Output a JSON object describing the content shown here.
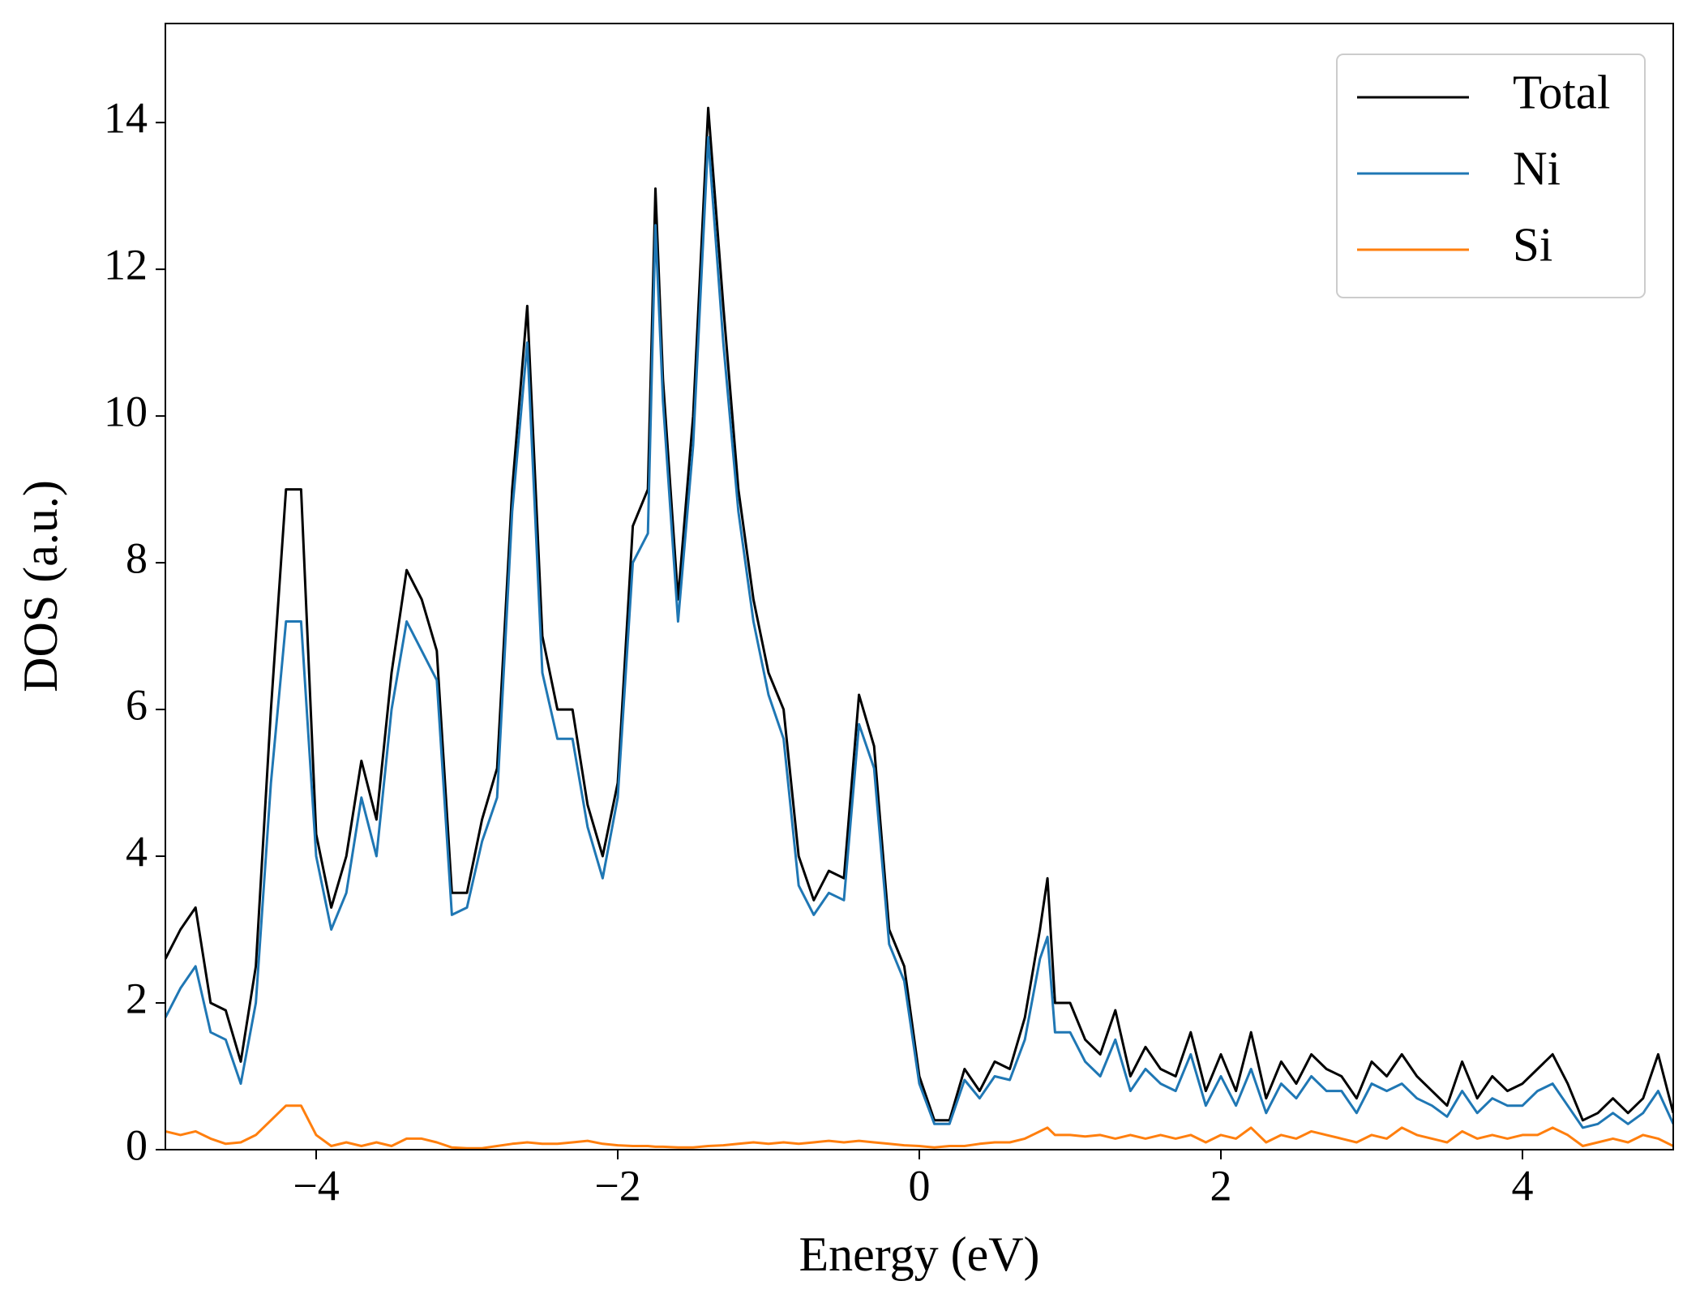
{
  "chart_data": {
    "type": "line",
    "xlabel": "Energy (eV)",
    "ylabel": "DOS (a.u.)",
    "xlim": [
      -5,
      5
    ],
    "ylim": [
      0,
      15.35
    ],
    "xticks": [
      {
        "value": -4,
        "label": "−4"
      },
      {
        "value": -2,
        "label": "−2"
      },
      0,
      2,
      4
    ],
    "yticks": [
      0,
      2,
      4,
      6,
      8,
      10,
      12,
      14
    ],
    "legend": "upper right",
    "x": [
      -5.0,
      -4.9,
      -4.8,
      -4.7,
      -4.6,
      -4.5,
      -4.4,
      -4.3,
      -4.2,
      -4.1,
      -4.0,
      -3.9,
      -3.8,
      -3.7,
      -3.6,
      -3.5,
      -3.4,
      -3.3,
      -3.2,
      -3.1,
      -3.0,
      -2.9,
      -2.8,
      -2.7,
      -2.6,
      -2.5,
      -2.4,
      -2.3,
      -2.2,
      -2.1,
      -2.0,
      -1.9,
      -1.8,
      -1.75,
      -1.7,
      -1.6,
      -1.5,
      -1.4,
      -1.3,
      -1.2,
      -1.1,
      -1.0,
      -0.9,
      -0.8,
      -0.7,
      -0.6,
      -0.5,
      -0.4,
      -0.3,
      -0.2,
      -0.1,
      0.0,
      0.1,
      0.2,
      0.3,
      0.4,
      0.5,
      0.6,
      0.7,
      0.8,
      0.85,
      0.9,
      1.0,
      1.1,
      1.2,
      1.3,
      1.4,
      1.5,
      1.6,
      1.7,
      1.8,
      1.9,
      2.0,
      2.1,
      2.2,
      2.3,
      2.4,
      2.5,
      2.6,
      2.7,
      2.8,
      2.9,
      3.0,
      3.1,
      3.2,
      3.3,
      3.4,
      3.5,
      3.6,
      3.7,
      3.8,
      3.9,
      4.0,
      4.1,
      4.2,
      4.3,
      4.4,
      4.5,
      4.6,
      4.7,
      4.8,
      4.9,
      5.0
    ],
    "series": [
      {
        "name": "Total",
        "color": "#000000",
        "values": [
          2.6,
          3.0,
          3.3,
          2.0,
          1.9,
          1.2,
          2.5,
          6.0,
          9.0,
          9.0,
          4.3,
          3.3,
          4.0,
          5.3,
          4.5,
          6.5,
          7.9,
          7.5,
          6.8,
          3.5,
          3.5,
          4.5,
          5.2,
          9.0,
          11.5,
          7.0,
          6.0,
          6.0,
          4.7,
          4.0,
          5.0,
          8.5,
          9.0,
          13.1,
          10.5,
          7.5,
          10.0,
          14.2,
          11.5,
          9.0,
          7.5,
          6.5,
          6.0,
          4.0,
          3.4,
          3.8,
          3.7,
          6.2,
          5.5,
          3.0,
          2.5,
          1.0,
          0.4,
          0.4,
          1.1,
          0.8,
          1.2,
          1.1,
          1.8,
          3.0,
          3.7,
          2.0,
          2.0,
          1.5,
          1.3,
          1.9,
          1.0,
          1.4,
          1.1,
          1.0,
          1.6,
          0.8,
          1.3,
          0.8,
          1.6,
          0.7,
          1.2,
          0.9,
          1.3,
          1.1,
          1.0,
          0.7,
          1.2,
          1.0,
          1.3,
          1.0,
          0.8,
          0.6,
          1.2,
          0.7,
          1.0,
          0.8,
          0.9,
          1.1,
          1.3,
          0.9,
          0.4,
          0.5,
          0.7,
          0.5,
          0.7,
          1.3,
          0.5
        ]
      },
      {
        "name": "Ni",
        "color": "#1f77b4",
        "values": [
          1.8,
          2.2,
          2.5,
          1.6,
          1.5,
          0.9,
          2.0,
          5.0,
          7.2,
          7.2,
          4.0,
          3.0,
          3.5,
          4.8,
          4.0,
          6.0,
          7.2,
          6.8,
          6.4,
          3.2,
          3.3,
          4.2,
          4.8,
          8.7,
          11.0,
          6.5,
          5.6,
          5.6,
          4.4,
          3.7,
          4.8,
          8.0,
          8.4,
          12.6,
          10.2,
          7.2,
          9.6,
          13.8,
          11.0,
          8.7,
          7.2,
          6.2,
          5.6,
          3.6,
          3.2,
          3.5,
          3.4,
          5.8,
          5.2,
          2.8,
          2.3,
          0.9,
          0.35,
          0.35,
          0.95,
          0.7,
          1.0,
          0.95,
          1.5,
          2.6,
          2.9,
          1.6,
          1.6,
          1.2,
          1.0,
          1.5,
          0.8,
          1.1,
          0.9,
          0.8,
          1.3,
          0.6,
          1.0,
          0.6,
          1.1,
          0.5,
          0.9,
          0.7,
          1.0,
          0.8,
          0.8,
          0.5,
          0.9,
          0.8,
          0.9,
          0.7,
          0.6,
          0.45,
          0.8,
          0.5,
          0.7,
          0.6,
          0.6,
          0.8,
          0.9,
          0.6,
          0.3,
          0.35,
          0.5,
          0.35,
          0.5,
          0.8,
          0.35
        ]
      },
      {
        "name": "Si",
        "color": "#ff7f0e",
        "values": [
          0.25,
          0.2,
          0.25,
          0.15,
          0.08,
          0.1,
          0.2,
          0.4,
          0.6,
          0.6,
          0.2,
          0.05,
          0.1,
          0.05,
          0.1,
          0.05,
          0.15,
          0.15,
          0.1,
          0.03,
          0.02,
          0.02,
          0.05,
          0.08,
          0.1,
          0.08,
          0.08,
          0.1,
          0.12,
          0.08,
          0.06,
          0.05,
          0.05,
          0.04,
          0.04,
          0.03,
          0.03,
          0.05,
          0.06,
          0.08,
          0.1,
          0.08,
          0.1,
          0.08,
          0.1,
          0.12,
          0.1,
          0.12,
          0.1,
          0.08,
          0.06,
          0.05,
          0.03,
          0.05,
          0.05,
          0.08,
          0.1,
          0.1,
          0.15,
          0.25,
          0.3,
          0.2,
          0.2,
          0.18,
          0.2,
          0.15,
          0.2,
          0.15,
          0.2,
          0.15,
          0.2,
          0.1,
          0.2,
          0.15,
          0.3,
          0.1,
          0.2,
          0.15,
          0.25,
          0.2,
          0.15,
          0.1,
          0.2,
          0.15,
          0.3,
          0.2,
          0.15,
          0.1,
          0.25,
          0.15,
          0.2,
          0.15,
          0.2,
          0.2,
          0.3,
          0.2,
          0.05,
          0.1,
          0.15,
          0.1,
          0.2,
          0.15,
          0.05
        ]
      }
    ]
  }
}
